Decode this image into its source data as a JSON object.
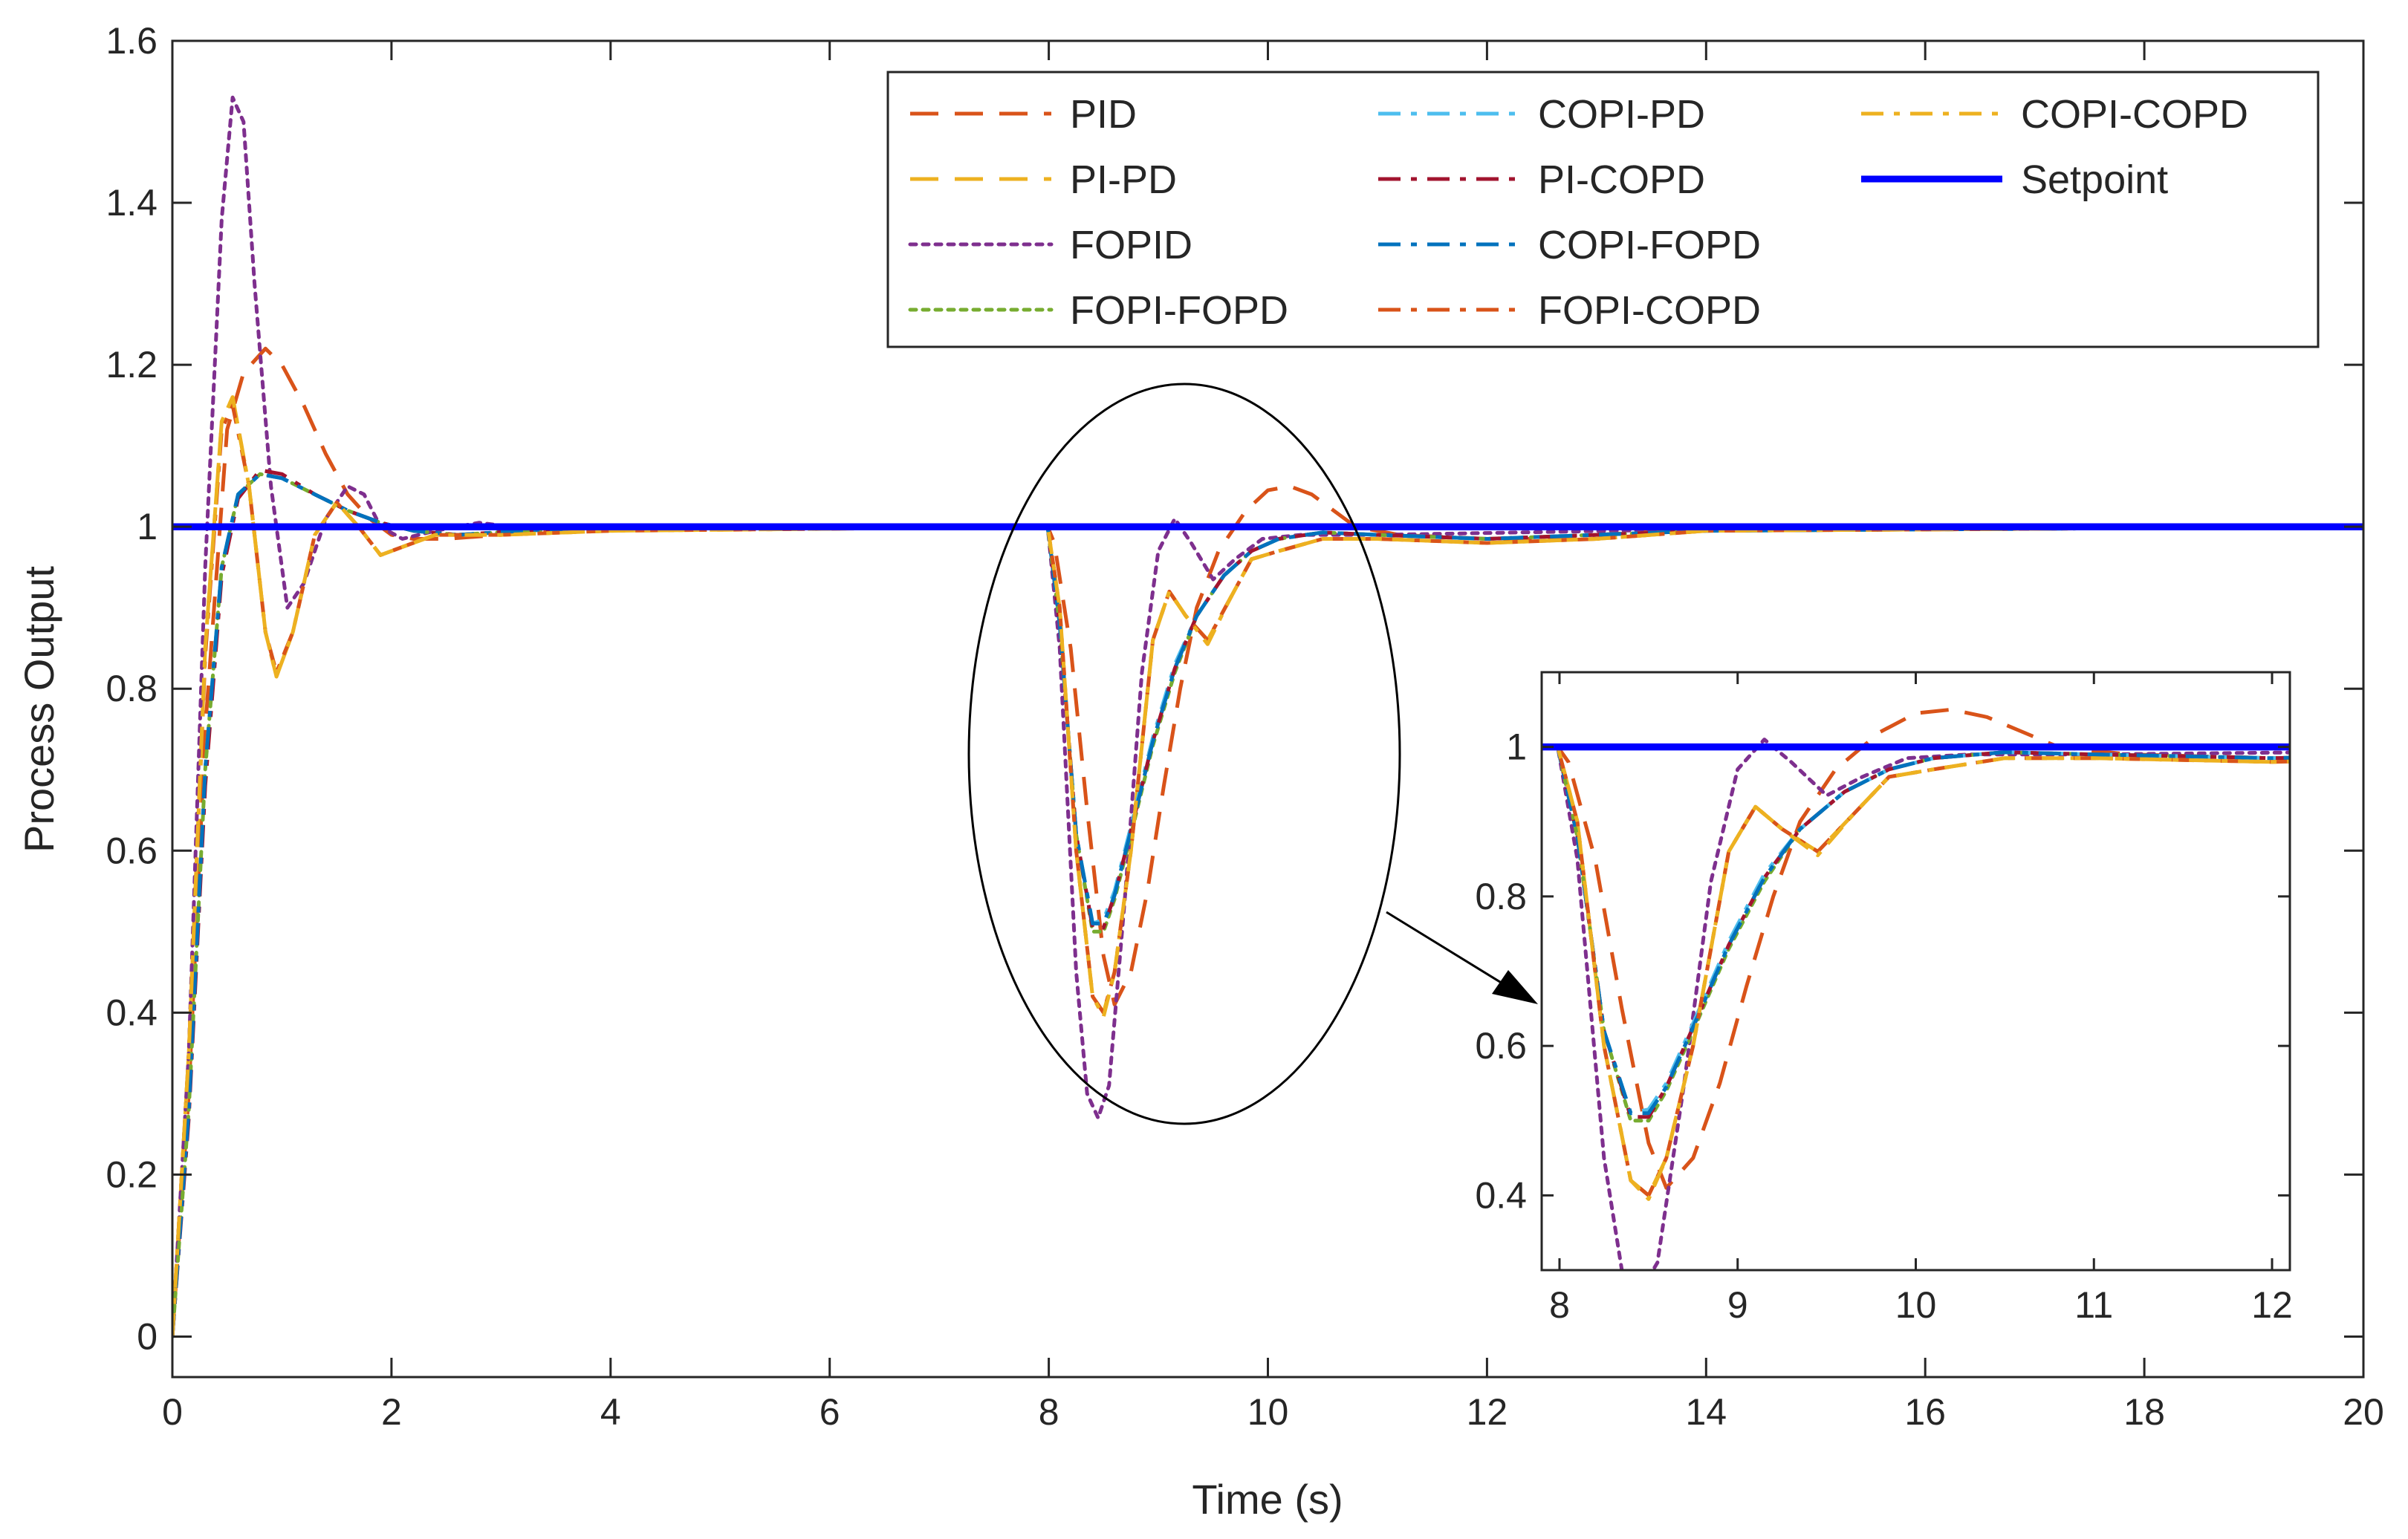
{
  "chart_data": {
    "type": "line",
    "xlabel": "Time (s)",
    "ylabel": "Process Output",
    "xlim": [
      0,
      20
    ],
    "ylim": [
      -0.05,
      1.6
    ],
    "xticks": [
      0,
      2,
      4,
      6,
      8,
      10,
      12,
      14,
      16,
      18,
      20
    ],
    "xtick_labels": [
      "0",
      "2",
      "4",
      "6",
      "8",
      "10",
      "12",
      "14",
      "16",
      "18",
      "20"
    ],
    "yticks": [
      0,
      0.2,
      0.4,
      0.6,
      0.8,
      1.0,
      1.2,
      1.4,
      1.6
    ],
    "ytick_labels": [
      "0",
      "0.2",
      "0.4",
      "0.6",
      "0.8",
      "1",
      "1.2",
      "1.4",
      "1.6"
    ],
    "legend_position": "top-right",
    "series": [
      {
        "name": "PID",
        "color": "#D95319",
        "dash": "long-dash",
        "x": [
          0,
          0.15,
          0.3,
          0.5,
          0.65,
          0.85,
          1.0,
          1.2,
          1.4,
          1.6,
          1.8,
          2.0,
          2.2,
          2.5,
          3.0,
          3.5,
          4.0,
          5.0,
          7.99,
          8.05,
          8.2,
          8.35,
          8.5,
          8.6,
          8.75,
          8.9,
          9.05,
          9.2,
          9.35,
          9.55,
          9.8,
          10.0,
          10.2,
          10.4,
          10.6,
          10.8,
          11.2,
          12.0,
          12.5,
          13.0,
          14.0,
          20.0
        ],
        "y": [
          0,
          0.3,
          0.75,
          1.12,
          1.19,
          1.22,
          1.2,
          1.15,
          1.09,
          1.04,
          1.01,
          0.99,
          0.985,
          0.985,
          0.99,
          0.995,
          1.0,
          1.0,
          1.0,
          0.98,
          0.85,
          0.65,
          0.47,
          0.41,
          0.45,
          0.55,
          0.68,
          0.8,
          0.9,
          0.97,
          1.02,
          1.045,
          1.05,
          1.04,
          1.02,
          1.0,
          0.99,
          0.985,
          0.985,
          0.99,
          0.998,
          1.0
        ]
      },
      {
        "name": "PI-PD",
        "color": "#EDB120",
        "dash": "long-dash",
        "x": [
          0,
          0.15,
          0.3,
          0.45,
          0.55,
          0.7,
          0.85,
          0.95,
          1.1,
          1.3,
          1.5,
          1.7,
          1.9,
          2.1,
          2.4,
          3.0,
          4.0,
          7.99,
          8.1,
          8.25,
          8.4,
          8.5,
          8.6,
          8.75,
          8.95,
          9.1,
          9.25,
          9.45,
          9.65,
          9.85,
          10.1,
          10.5,
          11.0,
          12.0,
          13.0,
          14.0,
          20.0
        ],
        "y": [
          0,
          0.35,
          0.85,
          1.13,
          1.16,
          1.05,
          0.87,
          0.815,
          0.87,
          0.99,
          1.03,
          1.0,
          0.965,
          0.975,
          0.99,
          0.99,
          0.995,
          1.0,
          0.9,
          0.6,
          0.42,
          0.4,
          0.45,
          0.6,
          0.86,
          0.92,
          0.89,
          0.86,
          0.91,
          0.96,
          0.97,
          0.985,
          0.985,
          0.98,
          0.985,
          0.995,
          1.0
        ]
      },
      {
        "name": "FOPID",
        "color": "#7E2F8E",
        "dash": "dotted",
        "x": [
          0,
          0.15,
          0.3,
          0.45,
          0.55,
          0.65,
          0.75,
          0.9,
          1.05,
          1.2,
          1.4,
          1.6,
          1.75,
          1.9,
          2.1,
          2.4,
          2.8,
          3.2,
          4.0,
          7.99,
          8.1,
          8.25,
          8.35,
          8.45,
          8.55,
          8.7,
          8.85,
          9.0,
          9.15,
          9.3,
          9.5,
          9.7,
          9.95,
          10.3,
          11.0,
          14.0,
          20.0
        ],
        "y": [
          0,
          0.35,
          0.95,
          1.38,
          1.53,
          1.5,
          1.3,
          1.05,
          0.9,
          0.93,
          1.01,
          1.05,
          1.04,
          1.0,
          0.985,
          0.995,
          1.005,
          0.998,
          1.0,
          1.0,
          0.85,
          0.45,
          0.3,
          0.27,
          0.31,
          0.55,
          0.82,
          0.97,
          1.01,
          0.98,
          0.935,
          0.96,
          0.985,
          0.99,
          0.99,
          0.997,
          1.0
        ]
      },
      {
        "name": "FOPI-FOPD",
        "color": "#77AC30",
        "dash": "dotted",
        "x": [
          0,
          0.15,
          0.3,
          0.45,
          0.6,
          0.8,
          1.0,
          1.3,
          1.6,
          1.9,
          2.2,
          2.6,
          3.2,
          4.0,
          7.99,
          8.1,
          8.25,
          8.4,
          8.5,
          8.6,
          8.75,
          8.95,
          9.15,
          9.35,
          9.6,
          9.85,
          10.1,
          10.5,
          11.0,
          12.0,
          14.0,
          20.0
        ],
        "y": [
          0,
          0.28,
          0.7,
          0.95,
          1.04,
          1.065,
          1.06,
          1.04,
          1.02,
          1.005,
          0.995,
          0.99,
          0.995,
          1.0,
          1.0,
          0.88,
          0.62,
          0.5,
          0.5,
          0.54,
          0.62,
          0.73,
          0.82,
          0.89,
          0.94,
          0.97,
          0.985,
          0.993,
          0.99,
          0.985,
          0.995,
          1.0
        ]
      },
      {
        "name": "COPI-PD",
        "color": "#4DBEEE",
        "dash": "dash-dot",
        "x": [
          0,
          0.15,
          0.3,
          0.45,
          0.6,
          0.8,
          1.0,
          1.3,
          1.6,
          1.9,
          2.2,
          2.6,
          3.2,
          4.0,
          7.99,
          8.1,
          8.25,
          8.4,
          8.5,
          8.6,
          8.75,
          8.95,
          9.15,
          9.35,
          9.6,
          9.85,
          10.1,
          10.5,
          11.0,
          12.0,
          14.0,
          20.0
        ],
        "y": [
          0,
          0.28,
          0.7,
          0.95,
          1.04,
          1.065,
          1.06,
          1.04,
          1.02,
          1.005,
          0.995,
          0.99,
          0.995,
          1.0,
          1.0,
          0.88,
          0.62,
          0.51,
          0.515,
          0.55,
          0.63,
          0.74,
          0.83,
          0.89,
          0.94,
          0.97,
          0.985,
          0.993,
          0.99,
          0.985,
          0.995,
          1.0
        ]
      },
      {
        "name": "PI-COPD",
        "color": "#A2142F",
        "dash": "dash-dot",
        "x": [
          0,
          0.15,
          0.3,
          0.45,
          0.6,
          0.8,
          1.0,
          1.3,
          1.6,
          1.9,
          2.2,
          2.6,
          3.2,
          4.0,
          7.99,
          8.1,
          8.25,
          8.4,
          8.5,
          8.6,
          8.75,
          8.95,
          9.15,
          9.35,
          9.6,
          9.85,
          10.1,
          10.5,
          11.0,
          12.0,
          14.0,
          20.0
        ],
        "y": [
          0,
          0.27,
          0.68,
          0.94,
          1.035,
          1.07,
          1.065,
          1.04,
          1.02,
          1.005,
          0.995,
          0.99,
          0.995,
          1.0,
          1.0,
          0.88,
          0.62,
          0.505,
          0.505,
          0.545,
          0.625,
          0.735,
          0.825,
          0.89,
          0.94,
          0.97,
          0.985,
          0.993,
          0.99,
          0.985,
          0.995,
          1.0
        ]
      },
      {
        "name": "COPI-FOPD",
        "color": "#0072BD",
        "dash": "dash-dot",
        "x": [
          0,
          0.15,
          0.3,
          0.45,
          0.6,
          0.8,
          1.0,
          1.3,
          1.6,
          1.9,
          2.2,
          2.6,
          3.2,
          4.0,
          7.99,
          8.1,
          8.25,
          8.4,
          8.5,
          8.6,
          8.75,
          8.95,
          9.15,
          9.35,
          9.6,
          9.85,
          10.1,
          10.5,
          11.0,
          12.0,
          14.0,
          20.0
        ],
        "y": [
          0,
          0.28,
          0.7,
          0.95,
          1.04,
          1.065,
          1.06,
          1.04,
          1.02,
          1.005,
          0.995,
          0.99,
          0.995,
          1.0,
          1.0,
          0.88,
          0.62,
          0.51,
          0.51,
          0.545,
          0.625,
          0.735,
          0.825,
          0.89,
          0.94,
          0.97,
          0.985,
          0.993,
          0.99,
          0.985,
          0.995,
          1.0
        ]
      },
      {
        "name": "FOPI-COPD",
        "color": "#D95319",
        "dash": "dash-dot",
        "x": [
          0,
          0.15,
          0.3,
          0.45,
          0.55,
          0.7,
          0.85,
          0.95,
          1.1,
          1.3,
          1.5,
          1.7,
          1.9,
          2.1,
          2.4,
          3.0,
          4.0,
          7.99,
          8.1,
          8.25,
          8.4,
          8.5,
          8.6,
          8.75,
          8.95,
          9.1,
          9.25,
          9.45,
          9.65,
          9.85,
          10.1,
          10.5,
          11.0,
          12.0,
          13.0,
          14.0,
          20.0
        ],
        "y": [
          0,
          0.35,
          0.84,
          1.12,
          1.15,
          1.05,
          0.87,
          0.82,
          0.87,
          0.99,
          1.03,
          1.0,
          0.965,
          0.975,
          0.99,
          0.99,
          0.995,
          1.0,
          0.9,
          0.6,
          0.42,
          0.4,
          0.45,
          0.6,
          0.86,
          0.92,
          0.89,
          0.86,
          0.91,
          0.96,
          0.97,
          0.985,
          0.985,
          0.98,
          0.985,
          0.995,
          1.0
        ]
      },
      {
        "name": "COPI-COPD",
        "color": "#EDB120",
        "dash": "dash-dot",
        "x": [
          0,
          0.15,
          0.3,
          0.45,
          0.55,
          0.7,
          0.85,
          0.95,
          1.1,
          1.3,
          1.5,
          1.7,
          1.9,
          2.1,
          2.4,
          3.0,
          4.0,
          7.99,
          8.1,
          8.25,
          8.4,
          8.5,
          8.6,
          8.75,
          8.95,
          9.1,
          9.25,
          9.45,
          9.65,
          9.85,
          10.1,
          10.5,
          11.0,
          12.0,
          13.0,
          14.0,
          20.0
        ],
        "y": [
          0,
          0.35,
          0.85,
          1.13,
          1.16,
          1.05,
          0.87,
          0.815,
          0.87,
          0.99,
          1.03,
          1.0,
          0.965,
          0.975,
          0.99,
          0.99,
          0.995,
          1.0,
          0.9,
          0.6,
          0.42,
          0.395,
          0.45,
          0.6,
          0.86,
          0.92,
          0.89,
          0.855,
          0.91,
          0.96,
          0.97,
          0.985,
          0.985,
          0.98,
          0.985,
          0.995,
          1.0
        ]
      },
      {
        "name": "Setpoint",
        "color": "#0000FF",
        "dash": "solid",
        "x": [
          0,
          20
        ],
        "y": [
          1,
          1
        ]
      }
    ],
    "inset": {
      "xlim": [
        7.9,
        12.1
      ],
      "ylim": [
        0.3,
        1.1
      ],
      "xticks": [
        8,
        9,
        10,
        11,
        12
      ],
      "xtick_labels": [
        "8",
        "9",
        "10",
        "11",
        "12"
      ],
      "yticks": [
        0.4,
        0.6,
        0.8,
        1.0
      ],
      "ytick_labels": [
        "0.4",
        "0.6",
        "0.8",
        "1"
      ],
      "zoom_region": {
        "x": [
          7.8,
          10.9
        ],
        "y": [
          0.25,
          1.13
        ]
      }
    }
  }
}
